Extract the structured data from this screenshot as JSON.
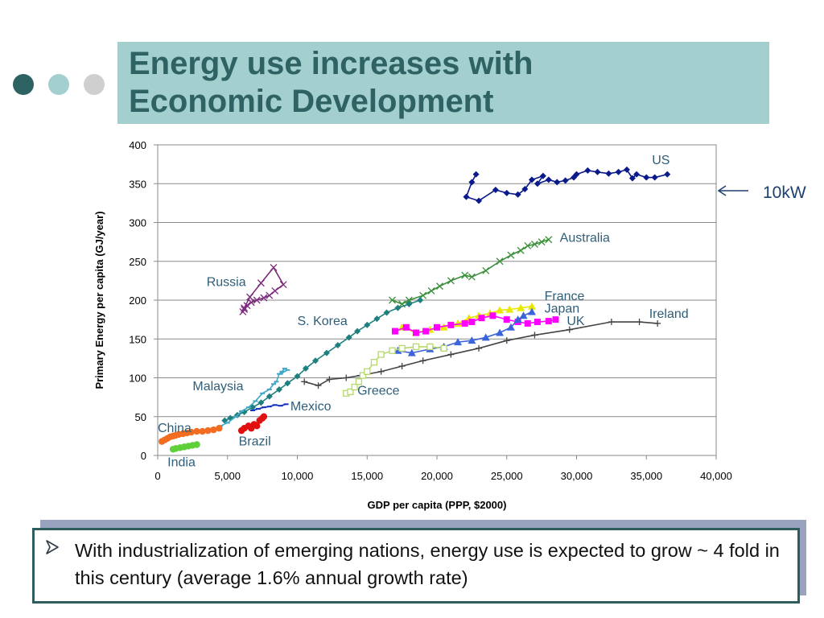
{
  "slide": {
    "title_line1": "Energy use increases with",
    "title_line2": "Economic Development",
    "decor_dot_colors": [
      "#2e6263",
      "#a3cfcf",
      "#cfcfcf"
    ],
    "annotation": {
      "text": "10kW",
      "arrow_icon": "left-arrow-icon",
      "y_value": 340
    },
    "bullet": {
      "icon": "arrowhead-bullet-icon",
      "text": "With industrialization of emerging nations, energy use is expected to grow ~ 4 fold in this century (average 1.6% annual growth rate)"
    }
  },
  "chart_data": {
    "type": "scatter",
    "xlabel": "GDP per capita (PPP, $2000)",
    "ylabel": "Primary Energy per capita (GJ/year)",
    "xlim": [
      0,
      40000
    ],
    "ylim": [
      0,
      400
    ],
    "x_ticks": [
      "0",
      "5,000",
      "10,000",
      "15,000",
      "20,000",
      "25,000",
      "30,000",
      "35,000",
      "40,000"
    ],
    "y_ticks": [
      "0",
      "50",
      "100",
      "150",
      "200",
      "250",
      "300",
      "350",
      "400"
    ],
    "grid": "horizontal",
    "series": [
      {
        "name": "US",
        "color": "#0a1a8a",
        "marker": "diamond",
        "x": [
          22800,
          22500,
          22100,
          23000,
          24200,
          25000,
          25800,
          26300,
          26800,
          27600,
          27200,
          28000,
          28600,
          29200,
          29800,
          30000,
          30800,
          31500,
          32300,
          33000,
          33600,
          34000,
          34300,
          35000,
          35600,
          36500
        ],
        "y": [
          362,
          352,
          333,
          328,
          342,
          338,
          336,
          343,
          355,
          360,
          350,
          355,
          352,
          354,
          358,
          362,
          367,
          365,
          363,
          365,
          368,
          357,
          362,
          358,
          358,
          362
        ]
      },
      {
        "name": "Australia",
        "color": "#3a8f3a",
        "marker": "x",
        "x": [
          16800,
          17500,
          18000,
          19000,
          19600,
          20200,
          21000,
          22000,
          22500,
          23500,
          24500,
          25300,
          26000,
          26500,
          27000,
          27500,
          28000
        ],
        "y": [
          200,
          195,
          200,
          206,
          212,
          218,
          225,
          232,
          230,
          238,
          250,
          258,
          264,
          270,
          272,
          275,
          278
        ]
      },
      {
        "name": "France",
        "color": "#e8e800",
        "marker": "triangle",
        "x": [
          17500,
          18500,
          19500,
          20500,
          21500,
          22300,
          23000,
          23800,
          24500,
          25200,
          26000,
          26800
        ],
        "y": [
          165,
          158,
          162,
          165,
          170,
          177,
          180,
          183,
          187,
          188,
          190,
          192
        ]
      },
      {
        "name": "Japan",
        "color": "#ff00ff",
        "marker": "square",
        "x": [
          17000,
          17800,
          18500,
          19200,
          20000,
          21000,
          22000,
          22500,
          23200,
          24000,
          25000,
          25800,
          26500,
          27200,
          28000,
          28500
        ],
        "y": [
          160,
          165,
          158,
          160,
          165,
          168,
          170,
          172,
          177,
          180,
          175,
          172,
          170,
          172,
          173,
          175
        ]
      },
      {
        "name": "UK",
        "color": "#3b64db",
        "marker": "triangle",
        "x": [
          17200,
          18200,
          19500,
          20500,
          21500,
          22500,
          23500,
          24500,
          25300,
          25800,
          26200,
          26800
        ],
        "y": [
          135,
          132,
          137,
          140,
          146,
          148,
          152,
          158,
          165,
          175,
          180,
          185
        ]
      },
      {
        "name": "Ireland",
        "color": "#444444",
        "marker": "plus",
        "x": [
          10500,
          11500,
          12300,
          13500,
          14500,
          16000,
          17500,
          19000,
          21000,
          23000,
          25000,
          27000,
          29500,
          32500,
          34500,
          35800
        ],
        "y": [
          95,
          90,
          98,
          100,
          103,
          108,
          115,
          122,
          130,
          138,
          148,
          155,
          162,
          172,
          172,
          170
        ]
      },
      {
        "name": "Greece",
        "color": "#b6d96b",
        "marker": "open-square",
        "x": [
          13500,
          13800,
          14100,
          14400,
          14700,
          15000,
          15500,
          16000,
          16800,
          17500,
          18500,
          19500,
          20500
        ],
        "y": [
          80,
          82,
          88,
          95,
          103,
          108,
          120,
          130,
          135,
          138,
          140,
          140,
          138
        ]
      },
      {
        "name": "S. Korea",
        "color": "#1e7f7f",
        "marker": "diamond",
        "x": [
          4800,
          5200,
          5700,
          6200,
          6800,
          7400,
          8000,
          8700,
          9300,
          10000,
          10600,
          11300,
          12100,
          12900,
          13700,
          14300,
          15000,
          15700,
          16400,
          17200,
          18000,
          18800
        ],
        "y": [
          45,
          48,
          52,
          56,
          62,
          68,
          76,
          85,
          93,
          102,
          112,
          122,
          132,
          142,
          152,
          160,
          168,
          176,
          184,
          190,
          195,
          200
        ]
      },
      {
        "name": "Russia",
        "color": "#7d2b7d",
        "marker": "x",
        "x": [
          6100,
          6200,
          6400,
          6700,
          7100,
          7600,
          8000,
          8400,
          9000,
          8300,
          7400,
          6600,
          6200
        ],
        "y": [
          185,
          188,
          193,
          197,
          200,
          203,
          206,
          212,
          220,
          242,
          222,
          204,
          190
        ]
      },
      {
        "name": "Malaysia",
        "color": "#41a8c7",
        "marker": "dash",
        "x": [
          4500,
          5000,
          5600,
          6000,
          6500,
          7000,
          7500,
          8000,
          8300,
          8500,
          8700,
          8900,
          9100,
          8800,
          9300
        ],
        "y": [
          38,
          42,
          50,
          57,
          62,
          70,
          80,
          85,
          92,
          95,
          105,
          108,
          112,
          105,
          110
        ]
      },
      {
        "name": "Mexico",
        "color": "#1030c0",
        "marker": "dash",
        "x": [
          6800,
          7200,
          7600,
          8000,
          8400,
          8800,
          9200
        ],
        "y": [
          58,
          60,
          62,
          63,
          65,
          64,
          66
        ]
      },
      {
        "name": "Brazil",
        "color": "#e11010",
        "marker": "circle",
        "x": [
          6000,
          6200,
          6500,
          6700,
          6900,
          7100,
          7300,
          7500,
          7600
        ],
        "y": [
          32,
          35,
          38,
          35,
          40,
          38,
          45,
          48,
          50
        ]
      },
      {
        "name": "China",
        "color": "#f26d21",
        "marker": "circle",
        "x": [
          300,
          500,
          700,
          900,
          1100,
          1300,
          1500,
          1800,
          2100,
          2400,
          2800,
          3200,
          3600,
          4000,
          4400
        ],
        "y": [
          18,
          20,
          22,
          24,
          25,
          26,
          27,
          28,
          29,
          30,
          31,
          31,
          32,
          33,
          35
        ]
      },
      {
        "name": "India",
        "color": "#5fcf3a",
        "marker": "circle",
        "x": [
          1100,
          1300,
          1600,
          1900,
          2200,
          2500,
          2800
        ],
        "y": [
          8,
          9,
          10,
          11,
          12,
          13,
          14
        ]
      }
    ]
  }
}
